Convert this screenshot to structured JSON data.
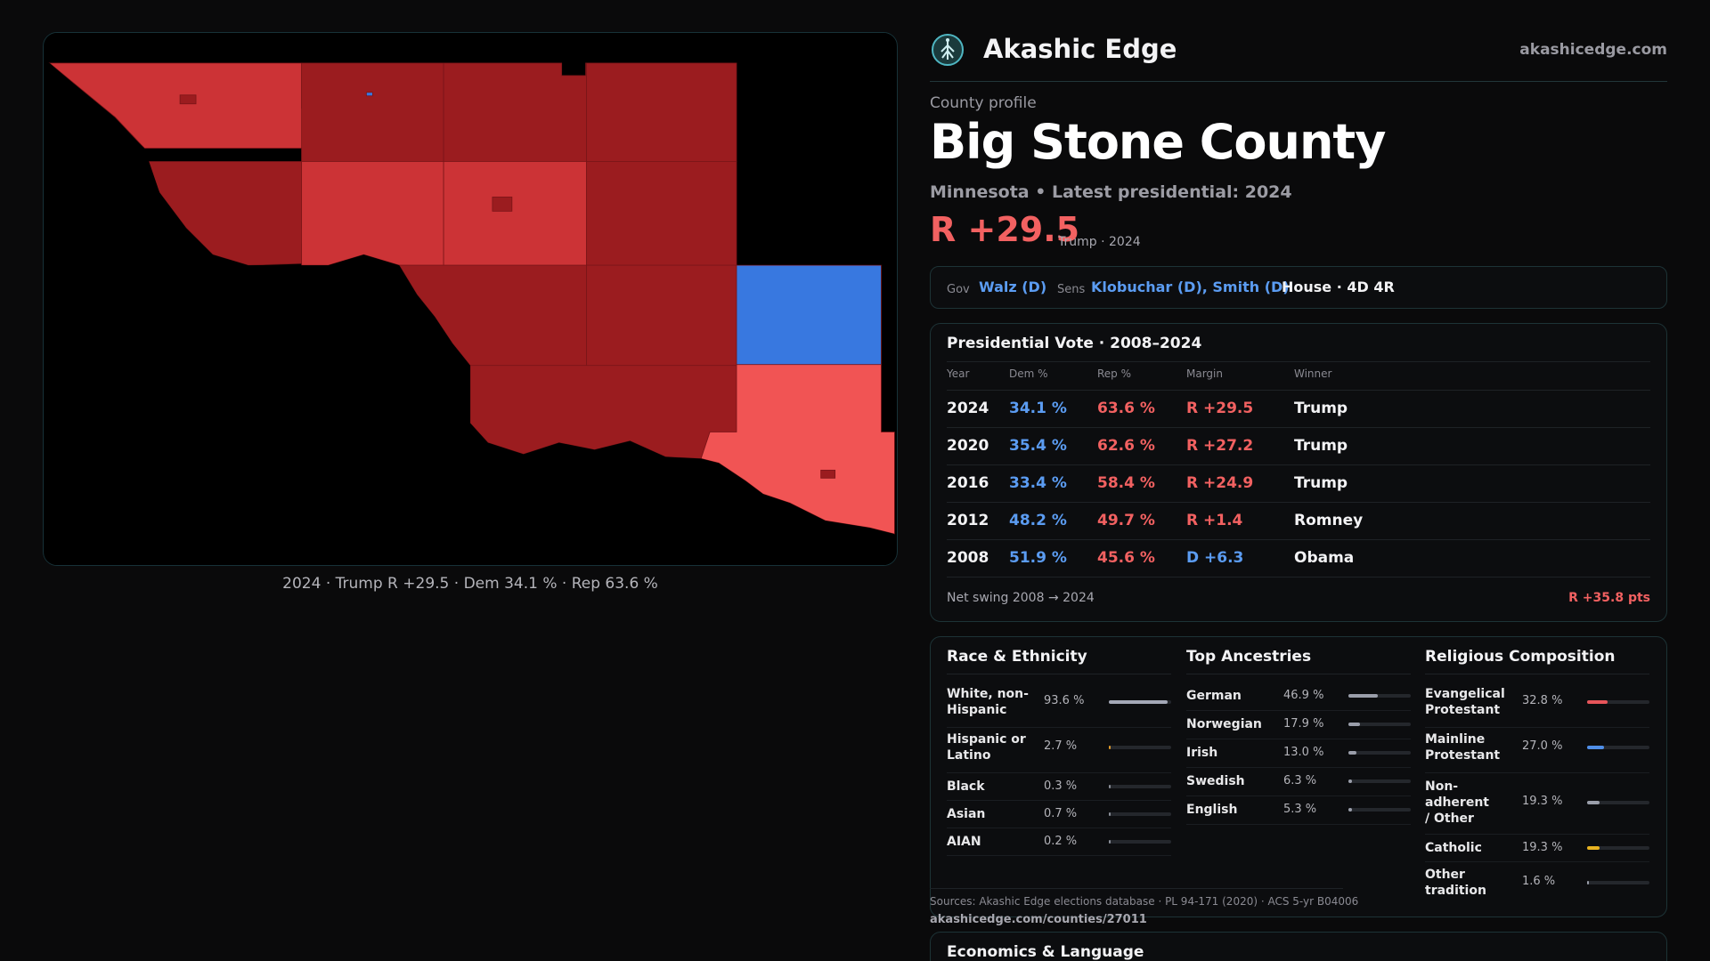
{
  "brand": {
    "name": "Akashic Edge",
    "url": "akashicedge.com",
    "logo_icon": "tree-of-life-icon"
  },
  "map": {
    "caption": "2024 · Trump R +29.5 · Dem 34.1 % · Rep 63.6 %",
    "colors": {
      "dark_red": "#9b1c1f",
      "red": "#cc3336",
      "light_red": "#f15454",
      "blue": "#3878e0",
      "water": "#000000"
    }
  },
  "profile": {
    "kicker": "County profile",
    "title": "Big Stone County",
    "subtitle": "Minnesota • Latest presidential: 2024",
    "margin": "R +29.5",
    "margin_note": "Trump · 2024"
  },
  "reps": {
    "gov_label": "Gov",
    "gov": "Walz (D)",
    "sens_label": "Sens",
    "sens": "Klobuchar (D), Smith (D)",
    "house": "House · 4D 4R"
  },
  "votes": {
    "title": "Presidential Vote · 2008–2024",
    "headers": {
      "year": "Year",
      "dem": "Dem %",
      "rep": "Rep %",
      "margin": "Margin",
      "winner": "Winner"
    },
    "rows": [
      {
        "year": "2024",
        "dem": "34.1 %",
        "rep": "63.6 %",
        "margin": "R +29.5",
        "winner": "Trump"
      },
      {
        "year": "2020",
        "dem": "35.4 %",
        "rep": "62.6 %",
        "margin": "R +27.2",
        "winner": "Trump"
      },
      {
        "year": "2016",
        "dem": "33.4 %",
        "rep": "58.4 %",
        "margin": "R +24.9",
        "winner": "Trump"
      },
      {
        "year": "2012",
        "dem": "48.2 %",
        "rep": "49.7 %",
        "margin": "R +1.4",
        "winner": "Romney"
      },
      {
        "year": "2008",
        "dem": "51.9 %",
        "rep": "45.6 %",
        "margin": "D +6.3",
        "winner": "Obama"
      }
    ],
    "swing_label": "Net swing 2008 → 2024",
    "swing_value": "R +35.8 pts"
  },
  "race": {
    "title": "Race & Ethnicity",
    "rows": [
      {
        "name": "White, non-Hispanic",
        "pct": "93.6 %",
        "value": 0.936,
        "color": "#a4a8b6"
      },
      {
        "name": "Hispanic or Latino",
        "pct": "2.7 %",
        "value": 0.027,
        "color": "#e09a2a"
      },
      {
        "name": "Black",
        "pct": "0.3 %",
        "value": 0.003,
        "color": "#8a8e98"
      },
      {
        "name": "Asian",
        "pct": "0.7 %",
        "value": 0.007,
        "color": "#8a8e98"
      },
      {
        "name": "AIAN",
        "pct": "0.2 %",
        "value": 0.002,
        "color": "#8a8e98"
      }
    ]
  },
  "ancestry": {
    "title": "Top Ancestries",
    "rows": [
      {
        "name": "German",
        "pct": "46.9 %",
        "value": 0.469,
        "color": "#9a9eaa"
      },
      {
        "name": "Norwegian",
        "pct": "17.9 %",
        "value": 0.179,
        "color": "#9a9eaa"
      },
      {
        "name": "Irish",
        "pct": "13.0 %",
        "value": 0.13,
        "color": "#9a9eaa"
      },
      {
        "name": "Swedish",
        "pct": "6.3 %",
        "value": 0.063,
        "color": "#9a9eaa"
      },
      {
        "name": "English",
        "pct": "5.3 %",
        "value": 0.053,
        "color": "#9a9eaa"
      }
    ]
  },
  "religion": {
    "title": "Religious Composition",
    "rows": [
      {
        "name": "Evangelical Protestant",
        "pct": "32.8 %",
        "value": 0.328,
        "color": "#e8555a"
      },
      {
        "name": "Mainline Protestant",
        "pct": "27.0 %",
        "value": 0.27,
        "color": "#4f8ee8"
      },
      {
        "name": "Non-adherent / Other",
        "pct": "19.3 %",
        "value": 0.193,
        "color": "#9a9eaa"
      },
      {
        "name": "Catholic",
        "pct": "19.3 %",
        "value": 0.193,
        "color": "#e8b321"
      },
      {
        "name": "Other tradition",
        "pct": "1.6 %",
        "value": 0.016,
        "color": "#9a9eaa"
      }
    ]
  },
  "sources": {
    "text": "Sources: Akashic Edge elections database · PL 94-171 (2020) · ACS 5-yr B04006",
    "url": "akashicedge.com/counties/27011"
  },
  "economics": {
    "title": "Economics & Language"
  }
}
